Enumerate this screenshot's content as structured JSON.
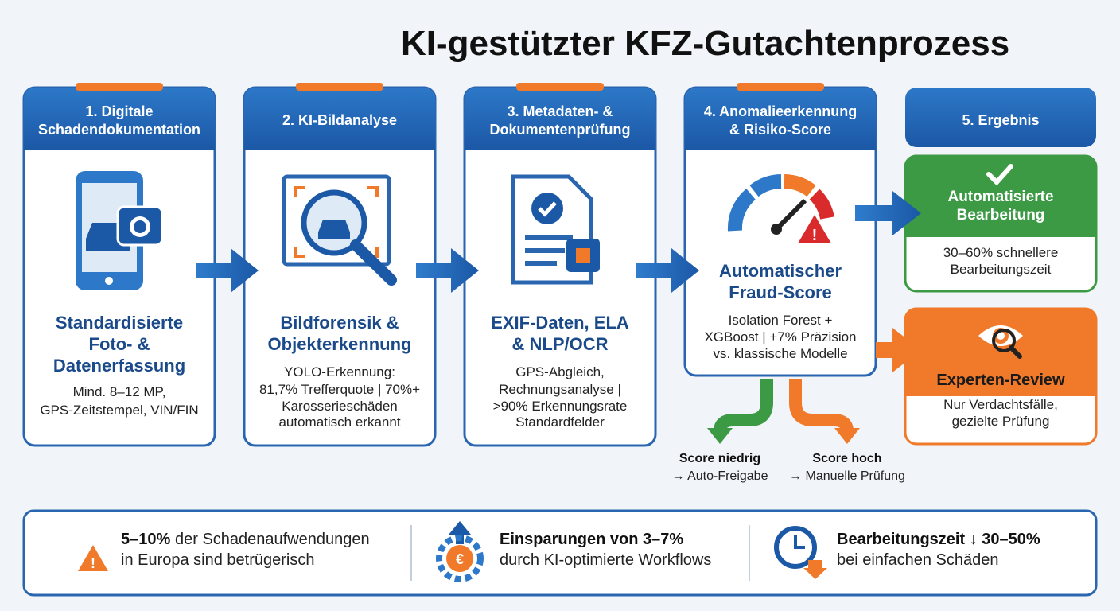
{
  "title": "KI-gestützter KFZ-Gutachtenprozess",
  "steps": [
    {
      "header": [
        "1. Digitale",
        "Schadendokumentation"
      ],
      "heading": [
        "Standardisierte",
        "Foto- &",
        "Datenerfassung"
      ],
      "text": [
        "Mind. 8–12 MP,",
        "GPS-Zeitstempel, VIN/FIN"
      ]
    },
    {
      "header": [
        "2. KI-Bildanalyse"
      ],
      "heading": [
        "Bildforensik &",
        "Objekterkennung"
      ],
      "text": [
        "YOLO-Erkennung:",
        "81,7% Trefferquote | 70%+",
        "Karosserieschäden",
        "automatisch erkannt"
      ]
    },
    {
      "header": [
        "3. Metadaten- &",
        "Dokumentenprüfung"
      ],
      "heading": [
        "EXIF-Daten, ELA",
        "& NLP/OCR"
      ],
      "text": [
        "GPS-Abgleich,",
        "Rechnungsanalyse |",
        ">90% Erkennungsrate",
        "Standardfelder"
      ]
    },
    {
      "header": [
        "4. Anomalieerkennung",
        "& Risiko-Score"
      ],
      "heading": [
        "Automatischer",
        "Fraud-Score"
      ],
      "text": [
        "Isolation Forest +",
        "XGBoost | +7% Präzision",
        "vs. klassische Modelle"
      ]
    }
  ],
  "result": {
    "header": "5. Ergebnis",
    "auto": {
      "title": [
        "Automatisierte",
        "Bearbeitung"
      ],
      "text": [
        "30–60% schnellere",
        "Bearbeitungszeit"
      ]
    },
    "expert": {
      "title": "Experten-Review",
      "text": [
        "Nur Verdachtsfälle,",
        "gezielte Prüfung"
      ]
    }
  },
  "branches": [
    {
      "label": "Score niedrig",
      "text": "→ Auto-Freigabe"
    },
    {
      "label": "Score hoch",
      "text": "→ Manuelle Prüfung"
    }
  ],
  "stats": [
    {
      "bold": "5–10%",
      "rest": "der Schadenaufwendungen",
      "line2": "in Europa sind betrügerisch"
    },
    {
      "bold": "Einsparungen von 3–7%",
      "line2": "durch KI-optimierte Workflows"
    },
    {
      "bold": "Bearbeitungszeit ↓ 30–50%",
      "line2": "bei einfachen Schäden"
    }
  ]
}
